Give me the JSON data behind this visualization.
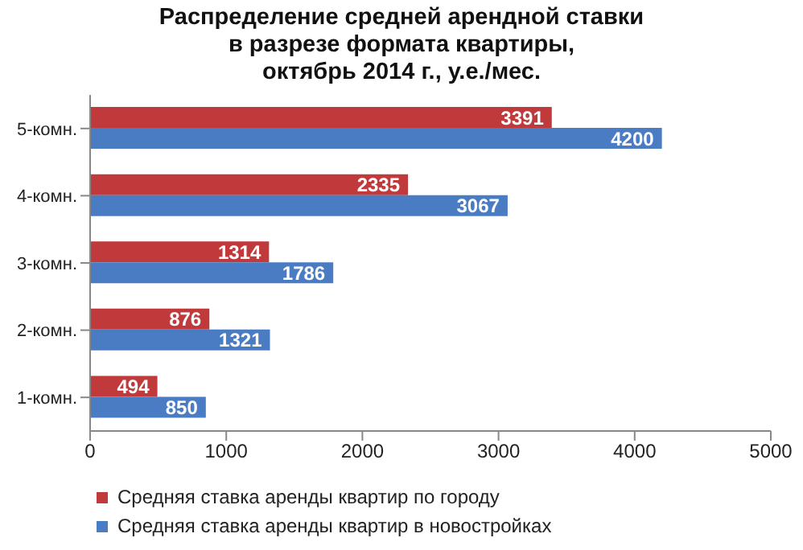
{
  "chart_data": {
    "type": "bar",
    "orientation": "horizontal",
    "title": "Распределение средней арендной ставки\nв разрезе формата квартиры,\nоктябрь 2014 г., у.е./мес.",
    "categories": [
      "5-комн.",
      "4-комн.",
      "3-комн.",
      "2-комн.",
      "1-комн."
    ],
    "series": [
      {
        "name": "Средняя ставка аренды квартир по городу",
        "color": "#c0393b",
        "values": [
          3391,
          2335,
          1314,
          876,
          494
        ]
      },
      {
        "name": "Средняя ставка аренды квартир в новостройках",
        "color": "#4a7cc4",
        "values": [
          4200,
          3067,
          1786,
          1321,
          850
        ]
      }
    ],
    "xlim": [
      0,
      5000
    ],
    "xticks": [
      0,
      1000,
      2000,
      3000,
      4000,
      5000
    ],
    "data_labels": true,
    "legend": "bottom",
    "grid": false
  }
}
